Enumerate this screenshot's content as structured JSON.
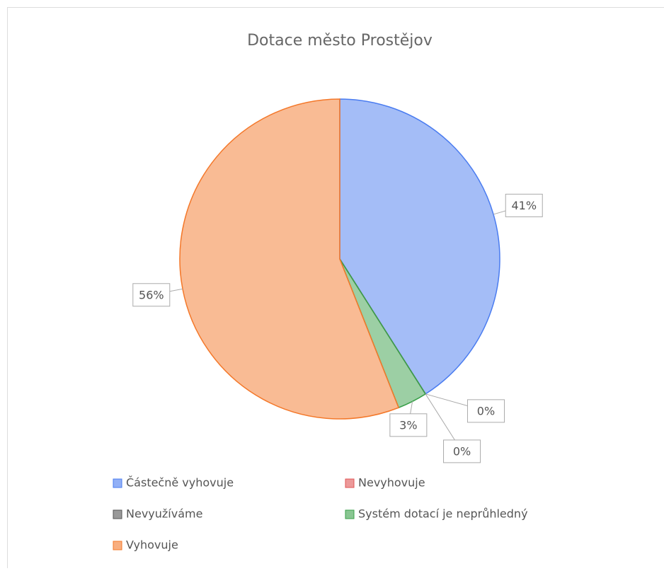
{
  "chart_data": {
    "type": "pie",
    "title": "Dotace město Prostějov",
    "categories": [
      "Částečně vyhovuje",
      "Nevyhovuje",
      "Nevyužíváme",
      "Systém dotací je neprůhledný",
      "Vyhovuje"
    ],
    "values": [
      41,
      0,
      0,
      3,
      56
    ],
    "value_labels": [
      "41%",
      "0%",
      "0%",
      "3%",
      "56%"
    ],
    "colors": [
      "#4a7cf0",
      "#e05555",
      "#555555",
      "#3aa04a",
      "#f4782a"
    ],
    "legend": "bottom"
  }
}
